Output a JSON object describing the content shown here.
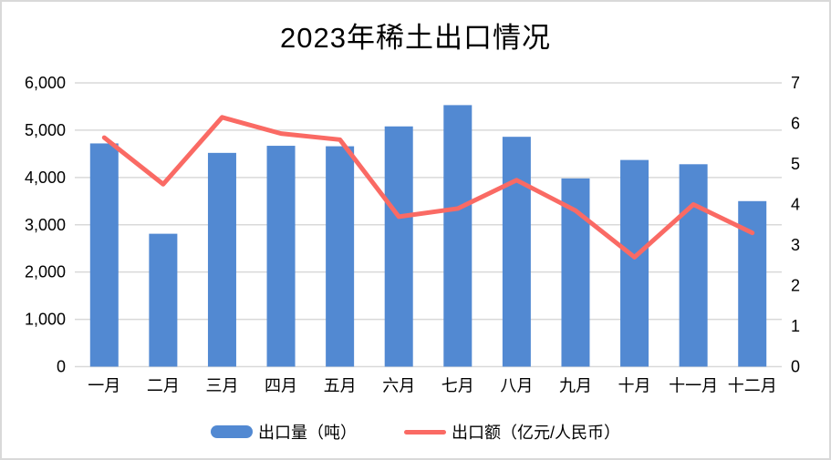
{
  "chart_data": {
    "type": "combo-bar-line",
    "title": "2023年稀土出口情况",
    "categories": [
      "一月",
      "二月",
      "三月",
      "四月",
      "五月",
      "六月",
      "七月",
      "八月",
      "九月",
      "十月",
      "十一月",
      "十二月"
    ],
    "series": [
      {
        "name": "出口量（吨）",
        "type": "bar",
        "axis": "left",
        "color": "#5289d2",
        "values": [
          4720,
          2810,
          4520,
          4670,
          4660,
          5080,
          5530,
          4860,
          3980,
          4370,
          4280,
          3500
        ]
      },
      {
        "name": "出口额（亿元/人民币）",
        "type": "line",
        "axis": "right",
        "color": "#fa6a64",
        "values": [
          5.65,
          4.5,
          6.15,
          5.75,
          5.6,
          3.7,
          3.9,
          4.6,
          3.85,
          2.7,
          4.0,
          3.3
        ]
      }
    ],
    "left_axis": {
      "min": 0,
      "max": 6000,
      "step": 1000,
      "tick_labels": [
        "0",
        "1,000",
        "2,000",
        "3,000",
        "4,000",
        "5,000",
        "6,000"
      ]
    },
    "right_axis": {
      "min": 0,
      "max": 7,
      "step": 1,
      "tick_labels": [
        "0",
        "1",
        "2",
        "3",
        "4",
        "5",
        "6",
        "7"
      ]
    },
    "grid": true,
    "legend_position": "bottom",
    "colors": {
      "gridline": "#d9d9d9",
      "text": "#000000",
      "background": "#ffffff",
      "border": "#d9d9d9"
    }
  }
}
